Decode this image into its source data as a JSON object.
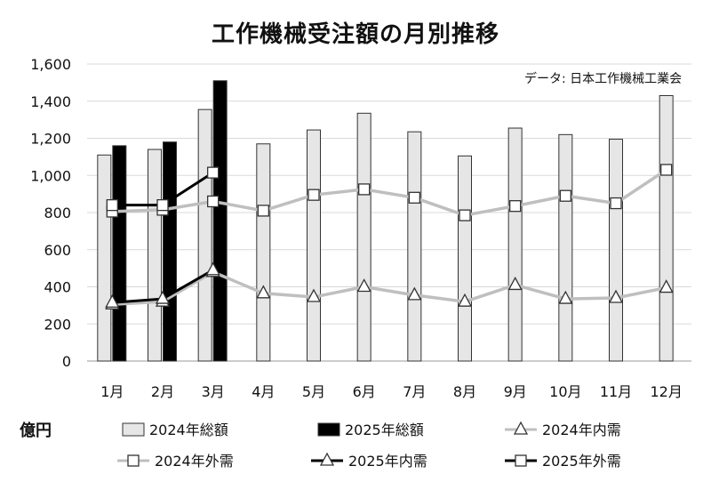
{
  "chart_data": {
    "type": "bar",
    "title": "工作機械受注額の月別推移",
    "source": "データ: 日本工作機械工業会",
    "unit_label": "億円",
    "categories": [
      "1月",
      "2月",
      "3月",
      "4月",
      "5月",
      "6月",
      "7月",
      "8月",
      "9月",
      "10月",
      "11月",
      "12月"
    ],
    "ylim": [
      0,
      1600
    ],
    "yticks": [
      "0",
      "200",
      "400",
      "600",
      "800",
      "1,000",
      "1,200",
      "1,400",
      "1,600"
    ],
    "grid": true,
    "bar_series": [
      {
        "name": "2024年総額",
        "color": "#e6e6e6",
        "values": [
          1110,
          1140,
          1355,
          1170,
          1245,
          1335,
          1235,
          1105,
          1255,
          1220,
          1195,
          1430
        ]
      },
      {
        "name": "2025年総額",
        "color": "#000000",
        "values": [
          1160,
          1180,
          1510,
          null,
          null,
          null,
          null,
          null,
          null,
          null,
          null,
          null
        ]
      }
    ],
    "line_series": [
      {
        "name": "2024年内需",
        "color": "#bfbfbf",
        "marker": "triangle",
        "values": [
          305,
          320,
          480,
          365,
          345,
          400,
          355,
          320,
          410,
          335,
          340,
          395
        ]
      },
      {
        "name": "2024年外需",
        "color": "#bfbfbf",
        "marker": "square",
        "values": [
          805,
          815,
          860,
          810,
          895,
          925,
          880,
          785,
          835,
          890,
          850,
          1030
        ]
      },
      {
        "name": "2025年内需",
        "color": "#000000",
        "marker": "triangle",
        "values": [
          315,
          335,
          490,
          null,
          null,
          null,
          null,
          null,
          null,
          null,
          null,
          null
        ]
      },
      {
        "name": "2025年外需",
        "color": "#000000",
        "marker": "square",
        "values": [
          840,
          840,
          1015,
          null,
          null,
          null,
          null,
          null,
          null,
          null,
          null,
          null
        ]
      }
    ],
    "legend_placement": "bottom"
  }
}
